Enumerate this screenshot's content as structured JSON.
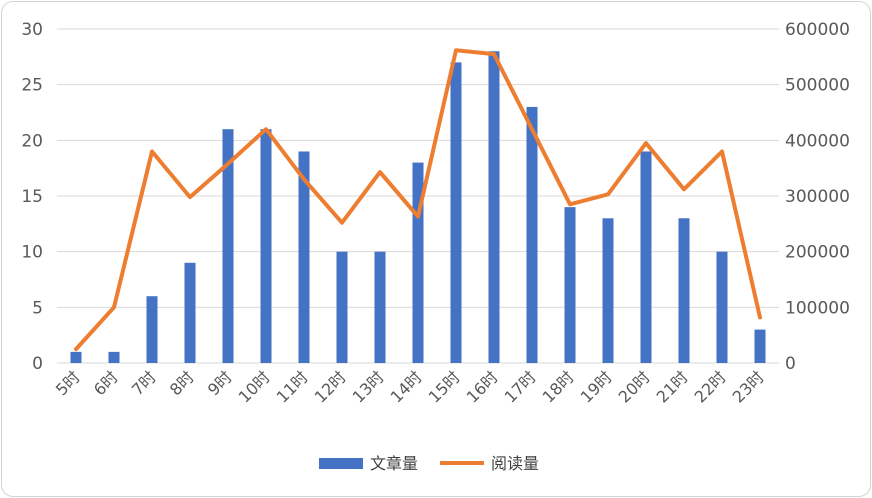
{
  "chart_data": {
    "type": "bar+line",
    "categories": [
      "5时",
      "6时",
      "7时",
      "8时",
      "9时",
      "10时",
      "11时",
      "12时",
      "13时",
      "14时",
      "15时",
      "16时",
      "17时",
      "18时",
      "19时",
      "20时",
      "21时",
      "22时",
      "23时"
    ],
    "series": [
      {
        "name": "文章量",
        "type": "bar",
        "axis": "left",
        "color": "#4472C4",
        "values": [
          1,
          1,
          6,
          9,
          21,
          21,
          19,
          10,
          10,
          18,
          27,
          28,
          23,
          14,
          13,
          19,
          13,
          10,
          3
        ]
      },
      {
        "name": "阅读量",
        "type": "line",
        "axis": "right",
        "color": "#ED7D31",
        "values": [
          25000,
          100000,
          380000,
          298000,
          358000,
          420000,
          330000,
          252000,
          343000,
          263000,
          562000,
          555000,
          420000,
          285000,
          303000,
          395000,
          312000,
          380000,
          82000
        ]
      }
    ],
    "y_left": {
      "range": [
        0,
        30
      ],
      "ticks": [
        "0",
        "5",
        "10",
        "15",
        "20",
        "25",
        "30"
      ]
    },
    "y_right": {
      "range": [
        0,
        600000
      ],
      "ticks": [
        "0",
        "100000",
        "200000",
        "300000",
        "400000",
        "500000",
        "600000"
      ]
    },
    "grid": "horizontal",
    "legend": "bottom-center"
  }
}
